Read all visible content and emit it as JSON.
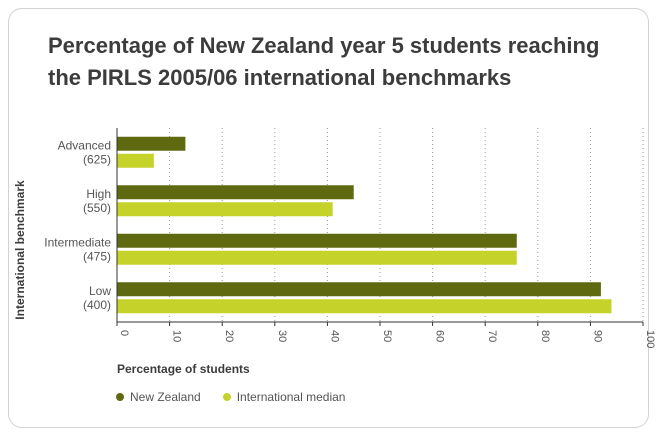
{
  "chart_data": {
    "type": "bar",
    "orientation": "horizontal",
    "title": "Percentage of New Zealand year 5 students reaching the PIRLS 2005/06 international benchmarks",
    "xlabel": "Percentage of students",
    "ylabel": "International benchmark",
    "xlim": [
      0,
      100
    ],
    "x_ticks": [
      0,
      10,
      20,
      30,
      40,
      50,
      60,
      70,
      80,
      90,
      100
    ],
    "grid": "vertical dotted",
    "legend_position": "bottom-left",
    "categories": [
      {
        "name": "Advanced",
        "score": "(625)"
      },
      {
        "name": "High",
        "score": "(550)"
      },
      {
        "name": "Intermediate",
        "score": "(475)"
      },
      {
        "name": "Low",
        "score": "(400)"
      }
    ],
    "series": [
      {
        "name": "New Zealand",
        "color": "#5f6a10",
        "values": [
          13,
          45,
          76,
          92
        ]
      },
      {
        "name": "International median",
        "color": "#c5d22a",
        "values": [
          7,
          41,
          76,
          94
        ]
      }
    ]
  }
}
